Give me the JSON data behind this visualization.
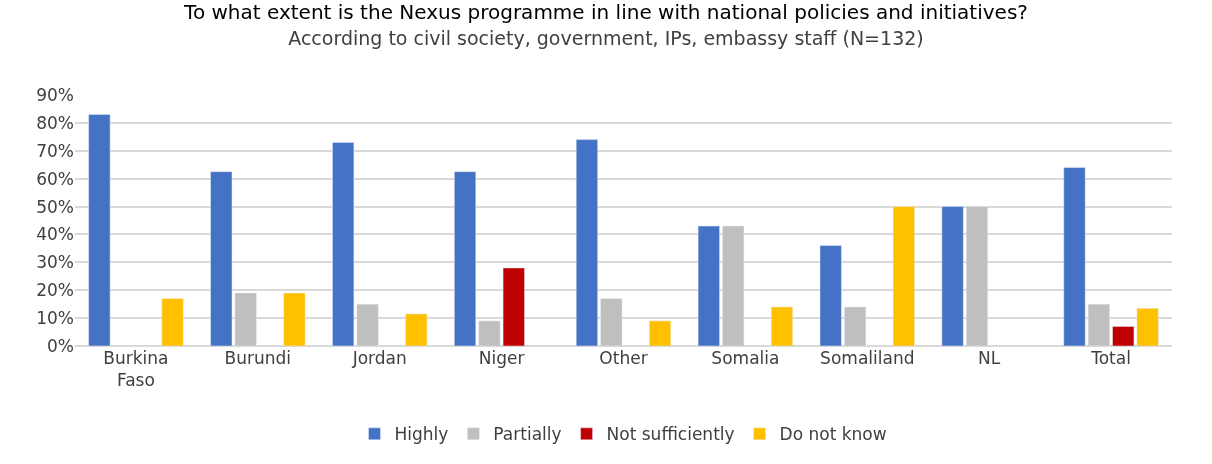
{
  "chart_data": {
    "type": "bar",
    "title": "To what extent is the Nexus programme in line with national policies and initiatives?",
    "subtitle": "According to civil society, government, IPs, embassy staff (N=132)",
    "categories": [
      "Burkina Faso",
      "Burundi",
      "Jordan",
      "Niger",
      "Other",
      "Somalia",
      "Somaliland",
      "NL",
      "Total"
    ],
    "series": [
      {
        "name": "Highly",
        "color": "#4472c4",
        "values": [
          83,
          62.5,
          73,
          62.5,
          74,
          43,
          36,
          50,
          64
        ]
      },
      {
        "name": "Partially",
        "color": "#bfbfbf",
        "values": [
          null,
          19,
          15,
          9,
          17,
          43,
          14,
          50,
          15
        ]
      },
      {
        "name": "Not sufficiently",
        "color": "#c00000",
        "values": [
          null,
          null,
          null,
          28,
          null,
          null,
          null,
          null,
          7
        ]
      },
      {
        "name": "Do not know",
        "color": "#ffc000",
        "values": [
          17,
          19,
          11.5,
          null,
          9,
          14,
          50,
          null,
          13.5
        ]
      }
    ],
    "ylim": [
      0,
      90
    ],
    "yticks": [
      {
        "value": 0,
        "label": "0%"
      },
      {
        "value": 10,
        "label": "10%"
      },
      {
        "value": 20,
        "label": "20%"
      },
      {
        "value": 30,
        "label": "30%"
      },
      {
        "value": 40,
        "label": "40%"
      },
      {
        "value": 50,
        "label": "50%"
      },
      {
        "value": 60,
        "label": "60%"
      },
      {
        "value": 70,
        "label": "70%"
      },
      {
        "value": 80,
        "label": "80%"
      },
      {
        "value": 90,
        "label": "90%"
      }
    ],
    "grid": "y",
    "legend": "bottom"
  }
}
